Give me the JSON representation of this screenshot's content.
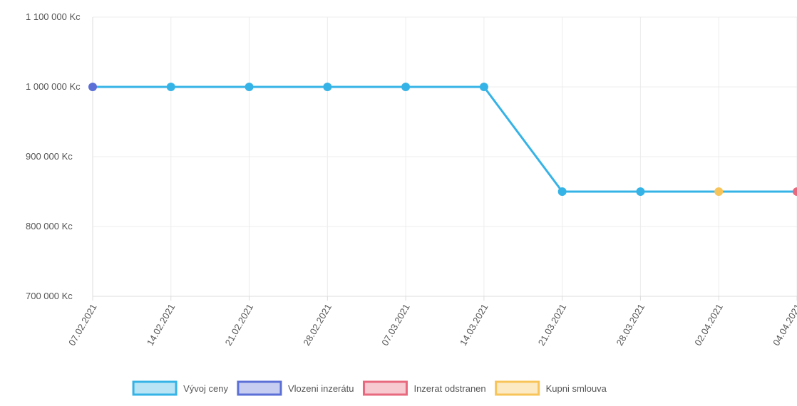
{
  "chart_data": {
    "type": "line",
    "title": "",
    "xlabel": "",
    "ylabel": "",
    "categories": [
      "07.02.2021",
      "14.02.2021",
      "21.02.2021",
      "28.02.2021",
      "07.03.2021",
      "14.03.2021",
      "21.03.2021",
      "28.03.2021",
      "02.04.2021",
      "04.04.2021"
    ],
    "y_ticks": [
      {
        "value": 700000,
        "label": "700 000 Kc"
      },
      {
        "value": 800000,
        "label": "800 000 Kc"
      },
      {
        "value": 900000,
        "label": "900 000 Kc"
      },
      {
        "value": 1000000,
        "label": "1 000 000 Kc"
      },
      {
        "value": 1100000,
        "label": "1 100 000 Kc"
      }
    ],
    "ylim": [
      700000,
      1100000
    ],
    "grid": true,
    "legend_position": "bottom-center",
    "series": [
      {
        "name": "Vývoj ceny",
        "color": "#36b3e6",
        "values": [
          1000000,
          1000000,
          1000000,
          1000000,
          1000000,
          1000000,
          850000,
          850000,
          850000,
          850000
        ],
        "point_colors": [
          "#5b6fd6",
          "#36b3e6",
          "#36b3e6",
          "#36b3e6",
          "#36b3e6",
          "#36b3e6",
          "#36b3e6",
          "#36b3e6",
          "#f7c45a",
          "#e8687e"
        ]
      }
    ],
    "legend": [
      {
        "label": "Vývoj ceny",
        "color": "#36b3e6"
      },
      {
        "label": "Vlozeni inzerátu",
        "color": "#5b6fd6"
      },
      {
        "label": "Inzerat odstranen",
        "color": "#e8687e"
      },
      {
        "label": "Kupni smlouva",
        "color": "#f7c45a"
      }
    ]
  }
}
